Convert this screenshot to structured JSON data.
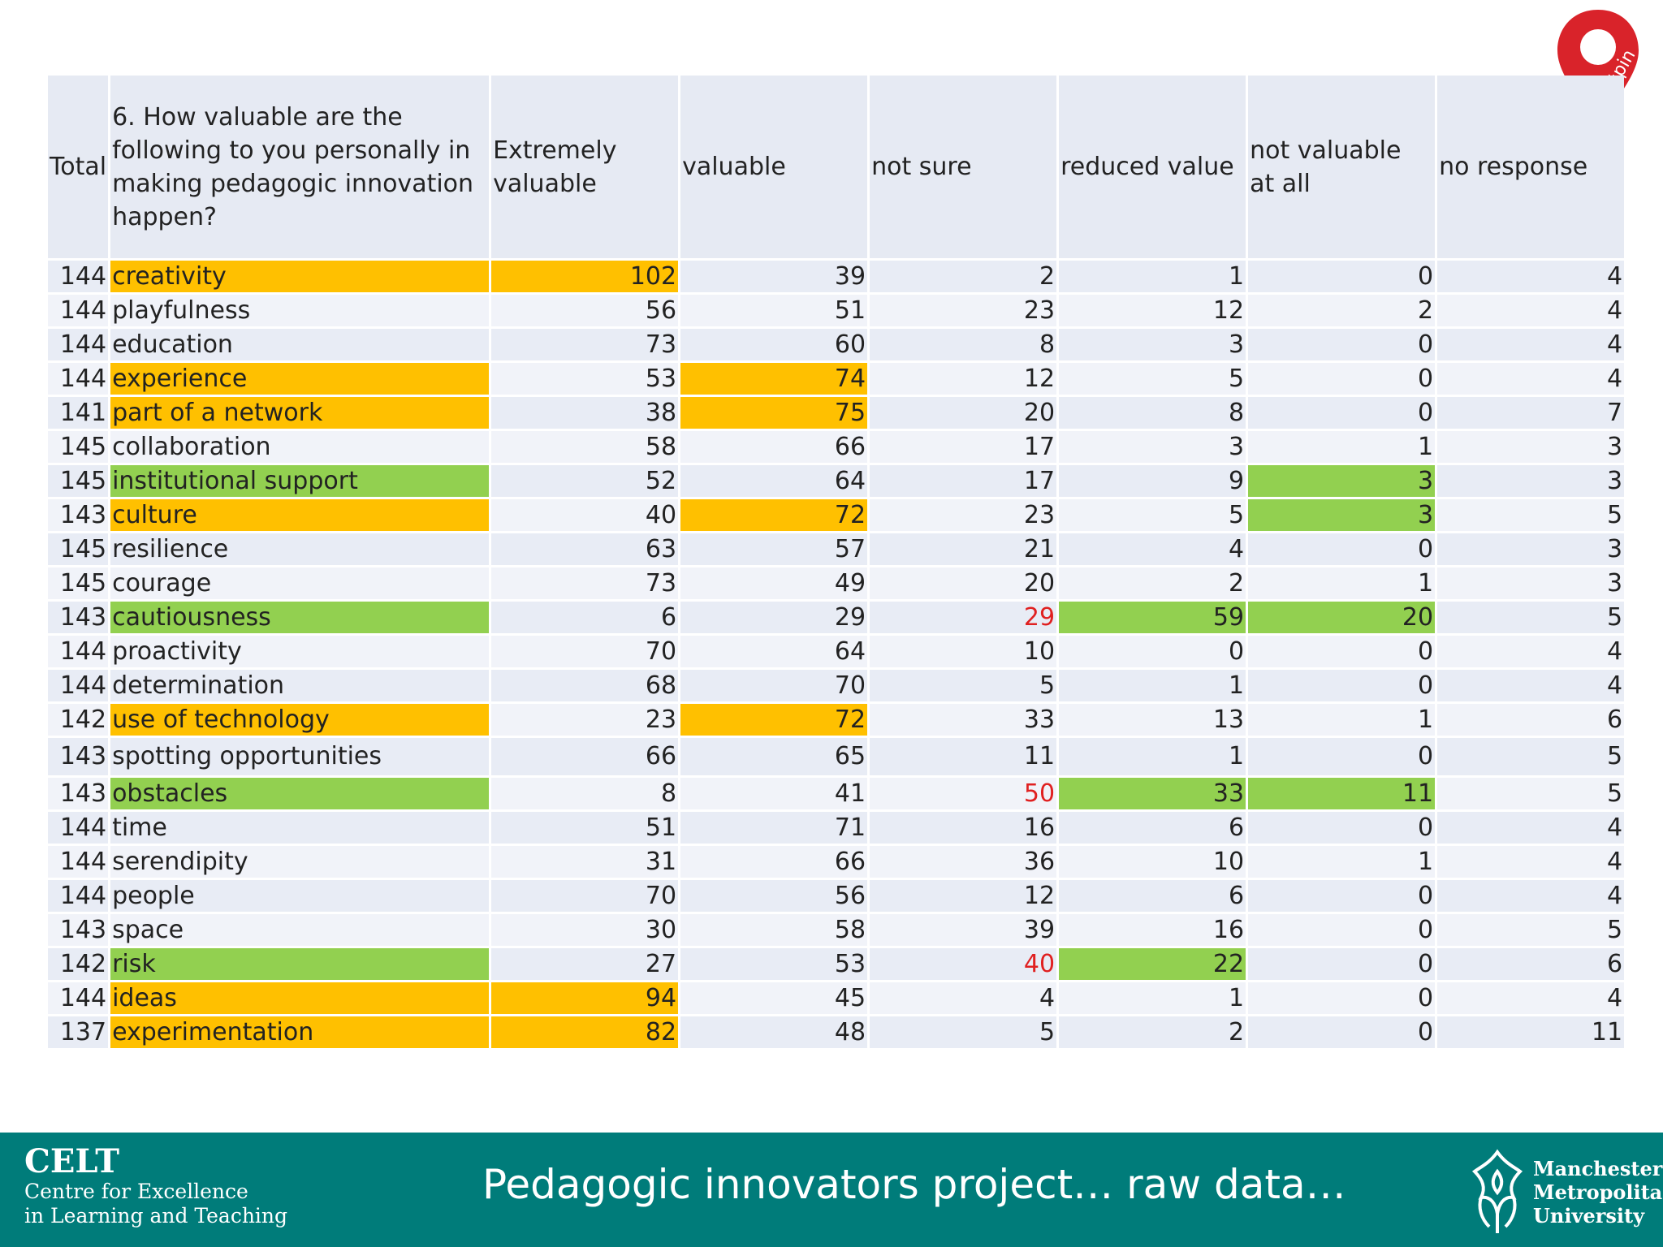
{
  "table": {
    "headers": {
      "total": "Total",
      "question": "6. How valuable are the following to you personally in making pedagogic innovation happen?",
      "extremely_valuable": "Extremely valuable",
      "valuable": "valuable",
      "not_sure": "not sure",
      "reduced_value": "reduced value",
      "not_valuable": "not valuable at all",
      "no_response": "no response"
    },
    "rows": [
      {
        "total": "144",
        "label": "creativity",
        "ev": "102",
        "v": "39",
        "ns": "2",
        "rv": "1",
        "nv": "0",
        "nr": "4"
      },
      {
        "total": "144",
        "label": "playfulness",
        "ev": "56",
        "v": "51",
        "ns": "23",
        "rv": "12",
        "nv": "2",
        "nr": "4"
      },
      {
        "total": "144",
        "label": "education",
        "ev": "73",
        "v": "60",
        "ns": "8",
        "rv": "3",
        "nv": "0",
        "nr": "4"
      },
      {
        "total": "144",
        "label": "experience",
        "ev": "53",
        "v": "74",
        "ns": "12",
        "rv": "5",
        "nv": "0",
        "nr": "4"
      },
      {
        "total": "141",
        "label": "part of a network",
        "ev": "38",
        "v": "75",
        "ns": "20",
        "rv": "8",
        "nv": "0",
        "nr": "7"
      },
      {
        "total": "145",
        "label": "collaboration",
        "ev": "58",
        "v": "66",
        "ns": "17",
        "rv": "3",
        "nv": "1",
        "nr": "3"
      },
      {
        "total": "145",
        "label": "institutional support",
        "ev": "52",
        "v": "64",
        "ns": "17",
        "rv": "9",
        "nv": "3",
        "nr": "3"
      },
      {
        "total": "143",
        "label": "culture",
        "ev": "40",
        "v": "72",
        "ns": "23",
        "rv": "5",
        "nv": "3",
        "nr": "5"
      },
      {
        "total": "145",
        "label": "resilience",
        "ev": "63",
        "v": "57",
        "ns": "21",
        "rv": "4",
        "nv": "0",
        "nr": "3"
      },
      {
        "total": "145",
        "label": "courage",
        "ev": "73",
        "v": "49",
        "ns": "20",
        "rv": "2",
        "nv": "1",
        "nr": "3"
      },
      {
        "total": "143",
        "label": "cautiousness",
        "ev": "6",
        "v": "29",
        "ns": "29",
        "rv": "59",
        "nv": "20",
        "nr": "5"
      },
      {
        "total": "144",
        "label": "proactivity",
        "ev": "70",
        "v": "64",
        "ns": "10",
        "rv": "0",
        "nv": "0",
        "nr": "4"
      },
      {
        "total": "144",
        "label": "determination",
        "ev": "68",
        "v": "70",
        "ns": "5",
        "rv": "1",
        "nv": "0",
        "nr": "4"
      },
      {
        "total": "142",
        "label": "use of technology",
        "ev": "23",
        "v": "72",
        "ns": "33",
        "rv": "13",
        "nv": "1",
        "nr": "6"
      },
      {
        "total": "143",
        "label": "spotting opportunities",
        "ev": "66",
        "v": "65",
        "ns": "11",
        "rv": "1",
        "nv": "0",
        "nr": "5"
      },
      {
        "total": "143",
        "label": "obstacles",
        "ev": "8",
        "v": "41",
        "ns": "50",
        "rv": "33",
        "nv": "11",
        "nr": "5"
      },
      {
        "total": "144",
        "label": "time",
        "ev": "51",
        "v": "71",
        "ns": "16",
        "rv": "6",
        "nv": "0",
        "nr": "4"
      },
      {
        "total": "144",
        "label": "serendipity",
        "ev": "31",
        "v": "66",
        "ns": "36",
        "rv": "10",
        "nv": "1",
        "nr": "4"
      },
      {
        "total": "144",
        "label": "people",
        "ev": "70",
        "v": "56",
        "ns": "12",
        "rv": "6",
        "nv": "0",
        "nr": "4"
      },
      {
        "total": "143",
        "label": "space",
        "ev": "30",
        "v": "58",
        "ns": "39",
        "rv": "16",
        "nv": "0",
        "nr": "5"
      },
      {
        "total": "142",
        "label": "risk",
        "ev": "27",
        "v": "53",
        "ns": "40",
        "rv": "22",
        "nv": "0",
        "nr": "6"
      },
      {
        "total": "144",
        "label": "ideas",
        "ev": "94",
        "v": "45",
        "ns": "4",
        "rv": "1",
        "nv": "0",
        "nr": "4"
      },
      {
        "total": "137",
        "label": "experimentation",
        "ev": "82",
        "v": "48",
        "ns": "5",
        "rv": "2",
        "nv": "0",
        "nr": "11"
      }
    ],
    "highlight_colors": {
      "orange": "#ffc000",
      "green": "#92d050",
      "red_text": "#e02020"
    }
  },
  "badge": {
    "text": "#pin",
    "color": "#d9232a"
  },
  "footer": {
    "background": "#007c7a",
    "celt_abbr": "CELT",
    "celt_line1": "Centre for Excellence",
    "celt_line2": "in Learning and Teaching",
    "title": "Pedagogic innovators project… raw data…",
    "university_line1": "Manchester",
    "university_line2": "Metropolitan",
    "university_line3": "University"
  }
}
